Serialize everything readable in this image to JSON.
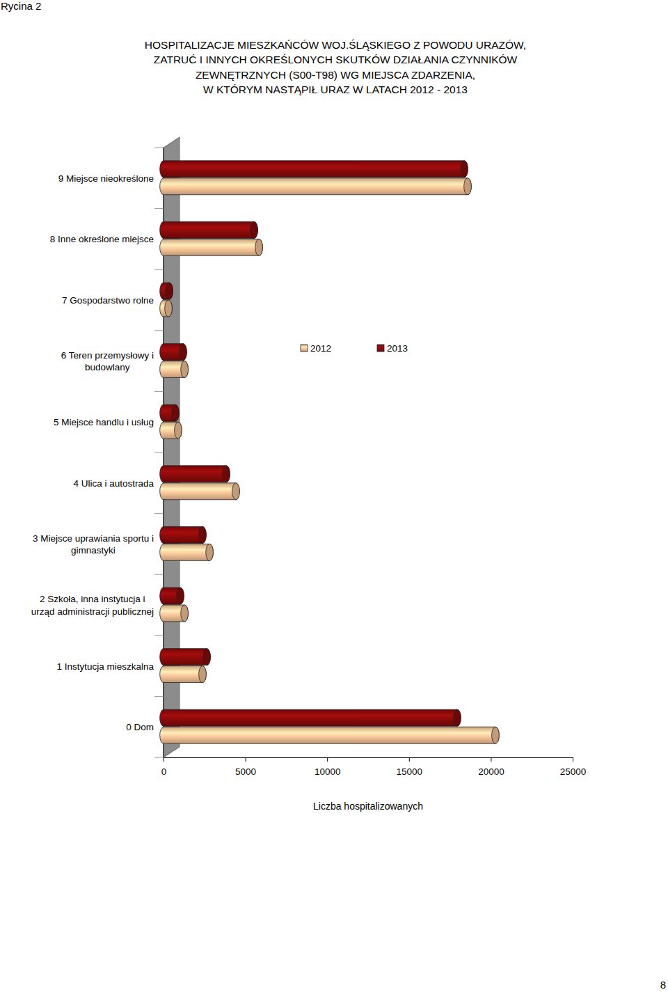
{
  "caption": "Rycina 2",
  "page_number": "8",
  "chart_data": {
    "type": "bar",
    "orientation": "horizontal",
    "title": "HOSPITALIZACJE MIESZKAŃCÓW WOJ.ŚLĄSKIEGO Z POWODU URAZÓW,\nZATRUĆ I INNYCH OKREŚLONYCH SKUTKÓW DZIAŁANIA CZYNNIKÓW\nZEWNĘTRZNYCH (S00-T98) WG MIEJSCA ZDARZENIA,\nW KTÓRYM NASTĄPIŁ URAZ  W LATACH 2012 - 2013",
    "x_label": "Liczba hospitalizowanych",
    "categories": [
      "0 Dom",
      "1 Instytucja mieszkalna",
      "2 Szkoła, inna instytucja i urząd administracji publicznej",
      "3 Miejsce uprawiania sportu i gimnastyki",
      "4 Ulica i autostrada",
      "5 Miejsce handlu i usług",
      "6 Teren przemysłowy i budowlany",
      "7 Gospodarstwo rolne",
      "8 Inne określone miejsce",
      "9 Miejsce nieokreślone"
    ],
    "series": [
      {
        "name": "2012",
        "color": "#f9c79a",
        "values": [
          20280,
          2380,
          1280,
          2810,
          4420,
          890,
          1280,
          300,
          5830,
          18580
        ]
      },
      {
        "name": "2013",
        "color": "#8b0a0a",
        "values": [
          17940,
          2640,
          1020,
          2380,
          3830,
          720,
          1190,
          350,
          5530,
          18370
        ]
      }
    ],
    "xlim": [
      0,
      25000
    ],
    "xticks": [
      0,
      5000,
      10000,
      15000,
      20000,
      25000
    ],
    "legend": "center",
    "grid": false
  }
}
